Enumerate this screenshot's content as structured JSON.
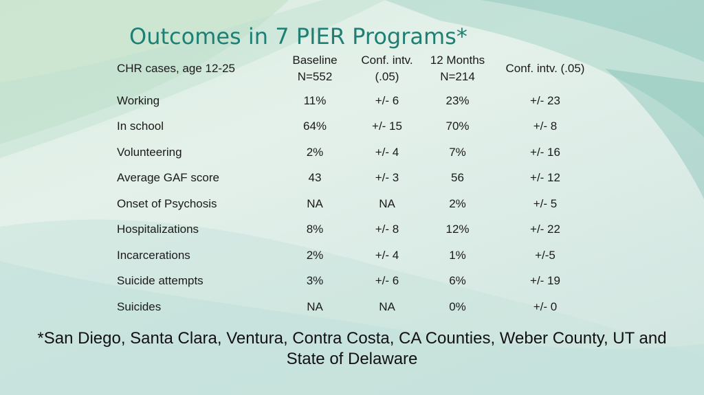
{
  "slide": {
    "title": "Outcomes in 7 PIER Programs*",
    "table": {
      "header": {
        "label": "CHR cases, age 12-25",
        "baseline": [
          "Baseline",
          "N=552"
        ],
        "conf1": [
          "Conf. intv.",
          "(.05)"
        ],
        "month12": [
          "12 Months",
          "N=214"
        ],
        "conf2": "Conf. intv. (.05)"
      },
      "rows": [
        {
          "label": "Working",
          "baseline": "11%",
          "conf1": "+/- 6",
          "month12": "23%",
          "conf2": "+/- 23"
        },
        {
          "label": "In school",
          "baseline": "64%",
          "conf1": "+/- 15",
          "month12": "70%",
          "conf2": "+/- 8"
        },
        {
          "label": "Volunteering",
          "baseline": "2%",
          "conf1": "+/- 4",
          "month12": "7%",
          "conf2": "+/- 16"
        },
        {
          "label": "Average GAF score",
          "baseline": "43",
          "conf1": "+/- 3",
          "month12": "56",
          "conf2": "+/- 12"
        },
        {
          "label": "Onset of Psychosis",
          "baseline": "NA",
          "conf1": "NA",
          "month12": "2%",
          "conf2": "+/- 5"
        },
        {
          "label": "Hospitalizations",
          "baseline": "8%",
          "conf1": "+/- 8",
          "month12": "12%",
          "conf2": "+/- 22"
        },
        {
          "label": "Incarcerations",
          "baseline": "2%",
          "conf1": "+/- 4",
          "month12": "1%",
          "conf2": "+/-5"
        },
        {
          "label": "Suicide attempts",
          "baseline": "3%",
          "conf1": "+/- 6",
          "month12": "6%",
          "conf2": "+/- 19"
        },
        {
          "label": "Suicides",
          "baseline": "NA",
          "conf1": "NA",
          "month12": "0%",
          "conf2": "+/- 0"
        }
      ]
    },
    "footnote": [
      "*San Diego, Santa Clara, Ventura, Contra Costa, CA Counties, Weber County, UT and",
      "State of Delaware"
    ]
  },
  "colors": {
    "title": "#1f7f73",
    "background": "#dcece4",
    "accent_teal": "#2f9b8c",
    "accent_green": "#9fd0a8"
  }
}
